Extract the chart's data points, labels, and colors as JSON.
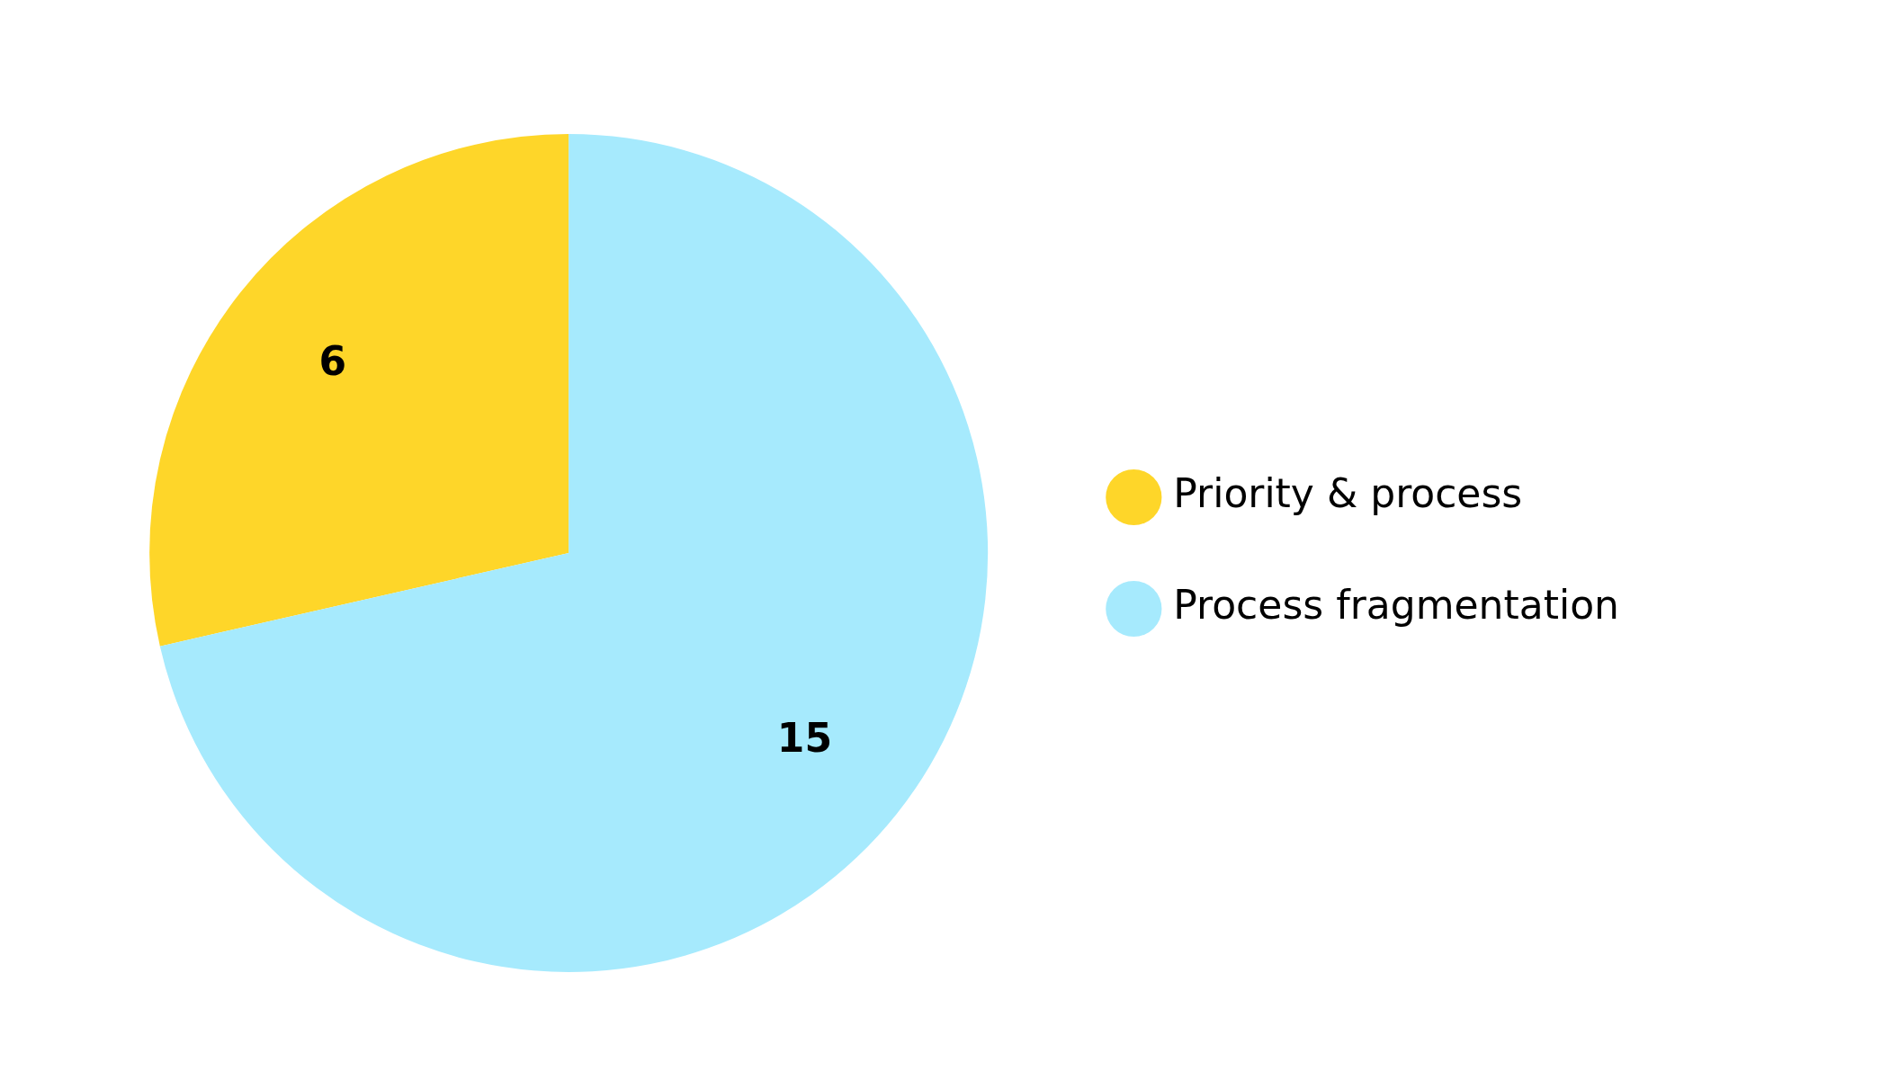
{
  "chart_data": {
    "type": "pie",
    "categories": [
      "Priority & process",
      "Process fragmentation"
    ],
    "values": [
      6,
      15
    ],
    "colors": [
      "#fed629",
      "#a6eafd"
    ],
    "data_labels": true,
    "legend": "right"
  }
}
